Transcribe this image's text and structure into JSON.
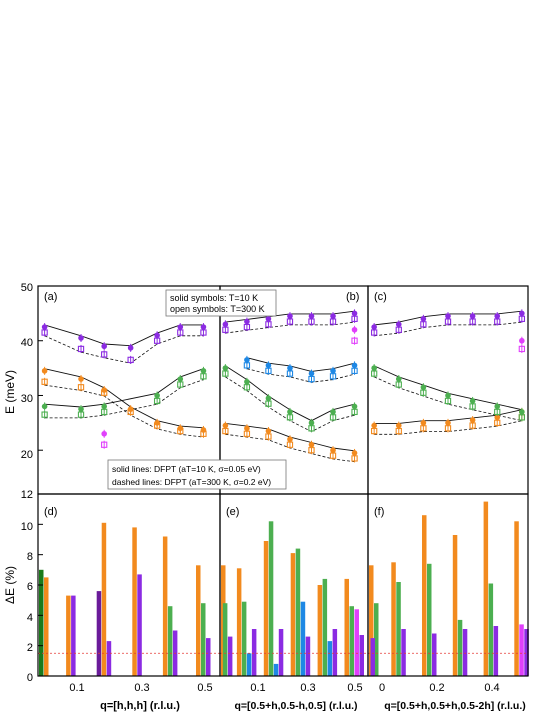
{
  "colors": {
    "orange": "#F28A1E",
    "green": "#4CAF50",
    "blue": "#1E88E5",
    "purple": "#8B2BE2",
    "magenta": "#E040FB",
    "darkgreen": "#1B7A1B",
    "darkpurple": "#6A1B9A",
    "threshold": "#E53935"
  },
  "figure": {
    "ylabel_top": "E (meV)",
    "ylabel_bottom": "ΔE (%)",
    "top_yticks": [
      "20",
      "30",
      "40",
      "50"
    ],
    "bottom_yticks": [
      "0",
      "2",
      "4",
      "6",
      "8",
      "10"
    ],
    "y12": "12",
    "legend_symbols": [
      "solid symbols: T=10 K",
      "open symbols: T=300 K"
    ],
    "legend_lines": [
      "solid lines: DFPT (aT=10 K, σ=0.05 eV)",
      "dashed lines: DFPT (aT=300 K, σ=0.2 eV)"
    ],
    "panel_labels": [
      "(a)",
      "(b)",
      "(c)",
      "(d)",
      "(e)",
      "(f)"
    ],
    "xticks_a": [
      "0.1",
      "0.3",
      "0.5"
    ],
    "xticks_b": [
      "0.1",
      "0.3",
      "0.5"
    ],
    "xticks_c": [
      "0",
      "0.2",
      "0.4"
    ],
    "xlabel_a": "q=[h,h,h] (r.l.u.)",
    "xlabel_b": "q=[0.5+h,0.5-h,0.5] (r.l.u.)",
    "xlabel_c": "q=[0.5+h,0.5+h,0.5-2h] (r.l.u.)"
  },
  "chart_data": [
    {
      "type": "scatter",
      "panel": "a",
      "ylim": [
        12,
        50
      ],
      "xlim": [
        0,
        0.55
      ],
      "ylabel": "E (meV)",
      "series": [
        {
          "color": "orange",
          "x": [
            0.02,
            0.13,
            0.2,
            0.28,
            0.36,
            0.43,
            0.5
          ],
          "y_10K": [
            34.5,
            33,
            31,
            27.5,
            25,
            24,
            23.7
          ],
          "y_300K": [
            32.5,
            31.5,
            30.5,
            27,
            24.5,
            23.5,
            23
          ]
        },
        {
          "color": "green",
          "x": [
            0.02,
            0.13,
            0.2,
            0.36,
            0.43,
            0.5
          ],
          "y_10K": [
            28,
            27.5,
            28,
            30,
            33,
            34.5
          ],
          "y_300K": [
            26.5,
            26.5,
            27,
            29,
            32,
            33.5
          ]
        },
        {
          "color": "purple",
          "x": [
            0.02,
            0.13,
            0.2,
            0.28,
            0.36,
            0.43,
            0.5
          ],
          "y_10K": [
            42.5,
            40.5,
            39,
            38.7,
            41,
            42.5,
            42.5
          ],
          "y_300K": [
            41.5,
            38.5,
            37.5,
            36.5,
            40,
            41.5,
            41.5
          ]
        },
        {
          "color": "magenta",
          "x": [
            0.2
          ],
          "y_10K": [
            23
          ],
          "y_300K": [
            21
          ]
        }
      ]
    },
    {
      "type": "scatter",
      "panel": "b",
      "ylim": [
        12,
        50
      ],
      "xlim": [
        0,
        0.55
      ],
      "series": [
        {
          "color": "orange",
          "x": [
            0.02,
            0.1,
            0.18,
            0.26,
            0.34,
            0.42,
            0.5
          ],
          "y_10K": [
            24.5,
            24,
            23.5,
            22,
            21,
            20,
            19.5
          ],
          "y_300K": [
            23.5,
            23,
            22.5,
            21,
            20,
            19,
            18.5
          ]
        },
        {
          "color": "green",
          "x": [
            0.02,
            0.1,
            0.18,
            0.26,
            0.34,
            0.42,
            0.5
          ],
          "y_10K": [
            35,
            32.5,
            29.5,
            27,
            25,
            27,
            28
          ],
          "y_300K": [
            34,
            31.5,
            28.5,
            26,
            24,
            26,
            27
          ]
        },
        {
          "color": "blue",
          "x": [
            0.1,
            0.18,
            0.26,
            0.34,
            0.42,
            0.5
          ],
          "y_10K": [
            36.5,
            35.5,
            35,
            34,
            34.5,
            35.5
          ],
          "y_300K": [
            35.5,
            34.5,
            34,
            33,
            33.5,
            34.5
          ]
        },
        {
          "color": "purple",
          "x": [
            0.02,
            0.1,
            0.18,
            0.26,
            0.34,
            0.42,
            0.5
          ],
          "y_10K": [
            43,
            43.5,
            44,
            44.5,
            44.5,
            44.5,
            45
          ],
          "y_300K": [
            42,
            42.5,
            43,
            43.5,
            43.5,
            43.5,
            44
          ]
        },
        {
          "color": "magenta",
          "x": [
            0.5
          ],
          "y_10K": [
            42
          ],
          "y_300K": [
            40
          ]
        }
      ]
    },
    {
      "type": "scatter",
      "panel": "c",
      "ylim": [
        12,
        50
      ],
      "xlim": [
        0,
        0.52
      ],
      "series": [
        {
          "color": "orange",
          "x": [
            0.02,
            0.1,
            0.18,
            0.26,
            0.34,
            0.42,
            0.5
          ],
          "y_10K": [
            24.5,
            24.5,
            25,
            25,
            25.5,
            26,
            27
          ],
          "y_300K": [
            23.5,
            23.5,
            24,
            24,
            24.5,
            25,
            26
          ]
        },
        {
          "color": "green",
          "x": [
            0.02,
            0.1,
            0.18,
            0.26,
            0.34,
            0.42,
            0.5
          ],
          "y_10K": [
            35,
            33,
            31.5,
            30,
            29,
            28,
            27
          ],
          "y_300K": [
            34,
            32,
            30.5,
            29,
            28,
            27,
            26
          ]
        },
        {
          "color": "purple",
          "x": [
            0.02,
            0.1,
            0.18,
            0.26,
            0.34,
            0.42,
            0.5
          ],
          "y_10K": [
            42.5,
            43,
            44,
            44.5,
            44.5,
            44.5,
            45
          ],
          "y_300K": [
            41.5,
            42,
            43,
            43.5,
            43.5,
            43.5,
            44
          ]
        },
        {
          "color": "magenta",
          "x": [
            0.5
          ],
          "y_10K": [
            40
          ],
          "y_300K": [
            38.5
          ]
        }
      ]
    },
    {
      "type": "bar",
      "panel": "d",
      "ylim": [
        0,
        12
      ],
      "xlim": [
        0,
        0.55
      ],
      "ylabel": "ΔE (%)",
      "threshold": 1.5,
      "groups": [
        {
          "x": 0.0,
          "bars": [
            {
              "color": "darkgreen",
              "value": 7.0
            },
            {
              "color": "orange",
              "value": 6.5
            }
          ]
        },
        {
          "x": 0.1,
          "bars": [
            {
              "color": "orange",
              "value": 5.3
            },
            {
              "color": "purple",
              "value": 5.3
            }
          ]
        },
        {
          "x": 0.2,
          "bars": [
            {
              "color": "darkpurple",
              "value": 5.6
            },
            {
              "color": "orange",
              "value": 10.1
            },
            {
              "color": "purple",
              "value": 2.3
            }
          ]
        },
        {
          "x": 0.3,
          "bars": [
            {
              "color": "orange",
              "value": 9.8
            },
            {
              "color": "purple",
              "value": 6.7
            }
          ]
        },
        {
          "x": 0.4,
          "bars": [
            {
              "color": "orange",
              "value": 9.2
            },
            {
              "color": "green",
              "value": 4.6
            },
            {
              "color": "purple",
              "value": 3.0
            }
          ]
        },
        {
          "x": 0.5,
          "bars": [
            {
              "color": "orange",
              "value": 7.3
            },
            {
              "color": "green",
              "value": 4.8
            },
            {
              "color": "purple",
              "value": 2.5
            }
          ]
        }
      ]
    },
    {
      "type": "bar",
      "panel": "e",
      "ylim": [
        0,
        12
      ],
      "xlim": [
        0,
        0.55
      ],
      "threshold": 1.5,
      "groups": [
        {
          "x": 0.02,
          "bars": [
            {
              "color": "orange",
              "value": 7.3
            },
            {
              "color": "green",
              "value": 4.8
            },
            {
              "color": "purple",
              "value": 2.6
            }
          ]
        },
        {
          "x": 0.1,
          "bars": [
            {
              "color": "orange",
              "value": 7.1
            },
            {
              "color": "green",
              "value": 4.9
            },
            {
              "color": "blue",
              "value": 1.5
            },
            {
              "color": "purple",
              "value": 3.1
            }
          ]
        },
        {
          "x": 0.2,
          "bars": [
            {
              "color": "orange",
              "value": 8.9
            },
            {
              "color": "green",
              "value": 10.2
            },
            {
              "color": "blue",
              "value": 0.8
            },
            {
              "color": "purple",
              "value": 3.1
            }
          ]
        },
        {
          "x": 0.3,
          "bars": [
            {
              "color": "orange",
              "value": 8.1
            },
            {
              "color": "green",
              "value": 8.4
            },
            {
              "color": "blue",
              "value": 4.9
            },
            {
              "color": "purple",
              "value": 2.6
            }
          ]
        },
        {
          "x": 0.4,
          "bars": [
            {
              "color": "orange",
              "value": 6.0
            },
            {
              "color": "green",
              "value": 6.4
            },
            {
              "color": "blue",
              "value": 2.3
            },
            {
              "color": "purple",
              "value": 3.1
            }
          ]
        },
        {
          "x": 0.5,
          "bars": [
            {
              "color": "orange",
              "value": 6.4
            },
            {
              "color": "green",
              "value": 4.6
            },
            {
              "color": "magenta",
              "value": 4.4
            },
            {
              "color": "purple",
              "value": 2.7
            }
          ]
        }
      ]
    },
    {
      "type": "bar",
      "panel": "f",
      "ylim": [
        0,
        12
      ],
      "xlim": [
        0,
        0.52
      ],
      "threshold": 1.5,
      "groups": [
        {
          "x": 0.0,
          "bars": [
            {
              "color": "orange",
              "value": 7.3
            },
            {
              "color": "green",
              "value": 4.8
            },
            {
              "color": "purple",
              "value": 2.5
            }
          ]
        },
        {
          "x": 0.1,
          "bars": [
            {
              "color": "orange",
              "value": 7.5
            },
            {
              "color": "green",
              "value": 6.2
            },
            {
              "color": "purple",
              "value": 3.1
            }
          ]
        },
        {
          "x": 0.2,
          "bars": [
            {
              "color": "orange",
              "value": 10.6
            },
            {
              "color": "green",
              "value": 7.4
            },
            {
              "color": "purple",
              "value": 2.8
            }
          ]
        },
        {
          "x": 0.3,
          "bars": [
            {
              "color": "orange",
              "value": 9.3
            },
            {
              "color": "green",
              "value": 3.7
            },
            {
              "color": "purple",
              "value": 3.1
            }
          ]
        },
        {
          "x": 0.4,
          "bars": [
            {
              "color": "orange",
              "value": 11.5
            },
            {
              "color": "green",
              "value": 6.1
            },
            {
              "color": "purple",
              "value": 3.3
            }
          ]
        },
        {
          "x": 0.5,
          "bars": [
            {
              "color": "orange",
              "value": 10.2
            },
            {
              "color": "magenta",
              "value": 3.4
            },
            {
              "color": "purple",
              "value": 3.1
            }
          ]
        }
      ]
    }
  ]
}
